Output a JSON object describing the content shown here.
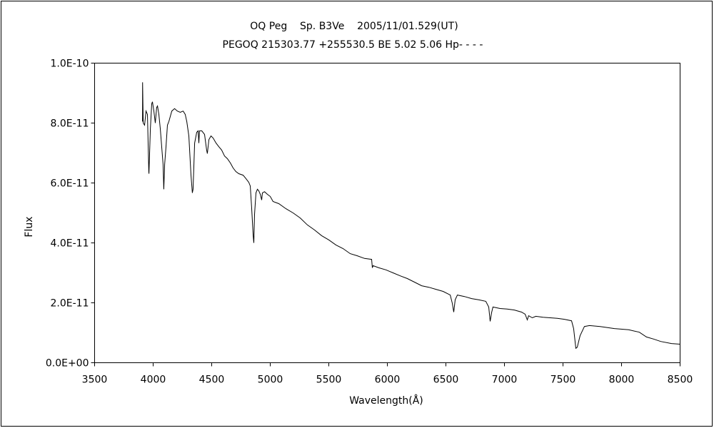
{
  "chart_data": {
    "type": "line",
    "title": "OQ Peg    Sp. B3Ve    2005/11/01.529(UT)",
    "subtitle": "PEGOQ 215303.77 +255530.5 BE 5.02 5.06 Hp- - - -",
    "xlabel": "Wavelength(Å)",
    "ylabel": "Flux",
    "xlim": [
      3500,
      8500
    ],
    "ylim": [
      0,
      1e-10
    ],
    "x_ticks": [
      3500,
      4000,
      4500,
      5000,
      5500,
      6000,
      6500,
      7000,
      7500,
      8000,
      8500
    ],
    "x_tick_labels": [
      "3500",
      "4000",
      "4500",
      "5000",
      "5500",
      "6000",
      "6500",
      "7000",
      "7500",
      "8000",
      "8500"
    ],
    "y_ticks": [
      0,
      2e-11,
      4e-11,
      6e-11,
      8e-11,
      1e-10
    ],
    "y_tick_labels": [
      "0.0E+00",
      "2.0E-11",
      "4.0E-11",
      "6.0E-11",
      "8.0E-11",
      "1.0E-10"
    ],
    "grid": false,
    "line_color": "#000000",
    "points": [
      [
        3909,
        8.05e-11
      ],
      [
        3910,
        9.36e-11
      ],
      [
        3915,
        8e-11
      ],
      [
        3927,
        7.93e-11
      ],
      [
        3939,
        8.4e-11
      ],
      [
        3951,
        8.29e-11
      ],
      [
        3963,
        6.38e-11
      ],
      [
        3964,
        6.31e-11
      ],
      [
        3976,
        7.81e-11
      ],
      [
        3988,
        8.64e-11
      ],
      [
        3994,
        8.71e-11
      ],
      [
        4006,
        8.4e-11
      ],
      [
        4018,
        8e-11
      ],
      [
        4030,
        8.52e-11
      ],
      [
        4037,
        8.57e-11
      ],
      [
        4049,
        8.29e-11
      ],
      [
        4061,
        7.81e-11
      ],
      [
        4085,
        6.62e-11
      ],
      [
        4091,
        5.79e-11
      ],
      [
        4098,
        6.62e-11
      ],
      [
        4110,
        7.21e-11
      ],
      [
        4122,
        7.93e-11
      ],
      [
        4134,
        8.05e-11
      ],
      [
        4159,
        8.4e-11
      ],
      [
        4183,
        8.48e-11
      ],
      [
        4207,
        8.4e-11
      ],
      [
        4232,
        8.36e-11
      ],
      [
        4256,
        8.4e-11
      ],
      [
        4274,
        8.29e-11
      ],
      [
        4287,
        8.05e-11
      ],
      [
        4305,
        7.57e-11
      ],
      [
        4323,
        6.26e-11
      ],
      [
        4335,
        5.67e-11
      ],
      [
        4341,
        5.79e-11
      ],
      [
        4354,
        7.33e-11
      ],
      [
        4372,
        7.69e-11
      ],
      [
        4384,
        7.74e-11
      ],
      [
        4390,
        7.33e-11
      ],
      [
        4396,
        7.74e-11
      ],
      [
        4415,
        7.74e-11
      ],
      [
        4439,
        7.62e-11
      ],
      [
        4457,
        7.1e-11
      ],
      [
        4463,
        6.98e-11
      ],
      [
        4476,
        7.45e-11
      ],
      [
        4494,
        7.57e-11
      ],
      [
        4512,
        7.5e-11
      ],
      [
        4537,
        7.33e-11
      ],
      [
        4561,
        7.21e-11
      ],
      [
        4585,
        7.1e-11
      ],
      [
        4610,
        6.9e-11
      ],
      [
        4634,
        6.81e-11
      ],
      [
        4659,
        6.67e-11
      ],
      [
        4683,
        6.5e-11
      ],
      [
        4707,
        6.38e-11
      ],
      [
        4732,
        6.31e-11
      ],
      [
        4768,
        6.26e-11
      ],
      [
        4793,
        6.14e-11
      ],
      [
        4817,
        6.02e-11
      ],
      [
        4829,
        5.9e-11
      ],
      [
        4841,
        5.19e-11
      ],
      [
        4854,
        4.24e-11
      ],
      [
        4860,
        4e-11
      ],
      [
        4866,
        4.95e-11
      ],
      [
        4878,
        5.67e-11
      ],
      [
        4890,
        5.79e-11
      ],
      [
        4902,
        5.74e-11
      ],
      [
        4915,
        5.62e-11
      ],
      [
        4927,
        5.43e-11
      ],
      [
        4933,
        5.67e-11
      ],
      [
        4951,
        5.71e-11
      ],
      [
        4976,
        5.62e-11
      ],
      [
        5000,
        5.55e-11
      ],
      [
        5024,
        5.38e-11
      ],
      [
        5073,
        5.31e-11
      ],
      [
        5134,
        5.14e-11
      ],
      [
        5195,
        5e-11
      ],
      [
        5256,
        4.83e-11
      ],
      [
        5317,
        4.6e-11
      ],
      [
        5378,
        4.43e-11
      ],
      [
        5439,
        4.24e-11
      ],
      [
        5500,
        4.1e-11
      ],
      [
        5561,
        3.93e-11
      ],
      [
        5622,
        3.81e-11
      ],
      [
        5683,
        3.64e-11
      ],
      [
        5744,
        3.57e-11
      ],
      [
        5805,
        3.48e-11
      ],
      [
        5866,
        3.45e-11
      ],
      [
        5872,
        3.17e-11
      ],
      [
        5878,
        3.24e-11
      ],
      [
        5927,
        3.17e-11
      ],
      [
        5988,
        3.1e-11
      ],
      [
        6049,
        3e-11
      ],
      [
        6110,
        2.9e-11
      ],
      [
        6171,
        2.81e-11
      ],
      [
        6232,
        2.69e-11
      ],
      [
        6293,
        2.57e-11
      ],
      [
        6354,
        2.52e-11
      ],
      [
        6415,
        2.45e-11
      ],
      [
        6476,
        2.38e-11
      ],
      [
        6537,
        2.26e-11
      ],
      [
        6555,
        1.98e-11
      ],
      [
        6567,
        1.69e-11
      ],
      [
        6579,
        2.1e-11
      ],
      [
        6598,
        2.26e-11
      ],
      [
        6659,
        2.21e-11
      ],
      [
        6720,
        2.14e-11
      ],
      [
        6780,
        2.1e-11
      ],
      [
        6841,
        2.05e-11
      ],
      [
        6866,
        1.86e-11
      ],
      [
        6878,
        1.38e-11
      ],
      [
        6890,
        1.67e-11
      ],
      [
        6902,
        1.86e-11
      ],
      [
        6963,
        1.81e-11
      ],
      [
        7024,
        1.79e-11
      ],
      [
        7085,
        1.76e-11
      ],
      [
        7146,
        1.69e-11
      ],
      [
        7177,
        1.62e-11
      ],
      [
        7195,
        1.43e-11
      ],
      [
        7207,
        1.57e-11
      ],
      [
        7238,
        1.5e-11
      ],
      [
        7268,
        1.55e-11
      ],
      [
        7329,
        1.52e-11
      ],
      [
        7390,
        1.5e-11
      ],
      [
        7451,
        1.48e-11
      ],
      [
        7512,
        1.45e-11
      ],
      [
        7573,
        1.4e-11
      ],
      [
        7591,
        1.14e-11
      ],
      [
        7610,
        4.8e-12
      ],
      [
        7622,
        5.2e-12
      ],
      [
        7646,
        9e-12
      ],
      [
        7683,
        1.21e-11
      ],
      [
        7726,
        1.24e-11
      ],
      [
        7817,
        1.21e-11
      ],
      [
        7939,
        1.14e-11
      ],
      [
        8061,
        1.1e-11
      ],
      [
        8152,
        1.02e-11
      ],
      [
        8213,
        8.6e-12
      ],
      [
        8274,
        7.9e-12
      ],
      [
        8335,
        7.1e-12
      ],
      [
        8427,
        6.4e-12
      ],
      [
        8500,
        6.2e-12
      ]
    ]
  }
}
